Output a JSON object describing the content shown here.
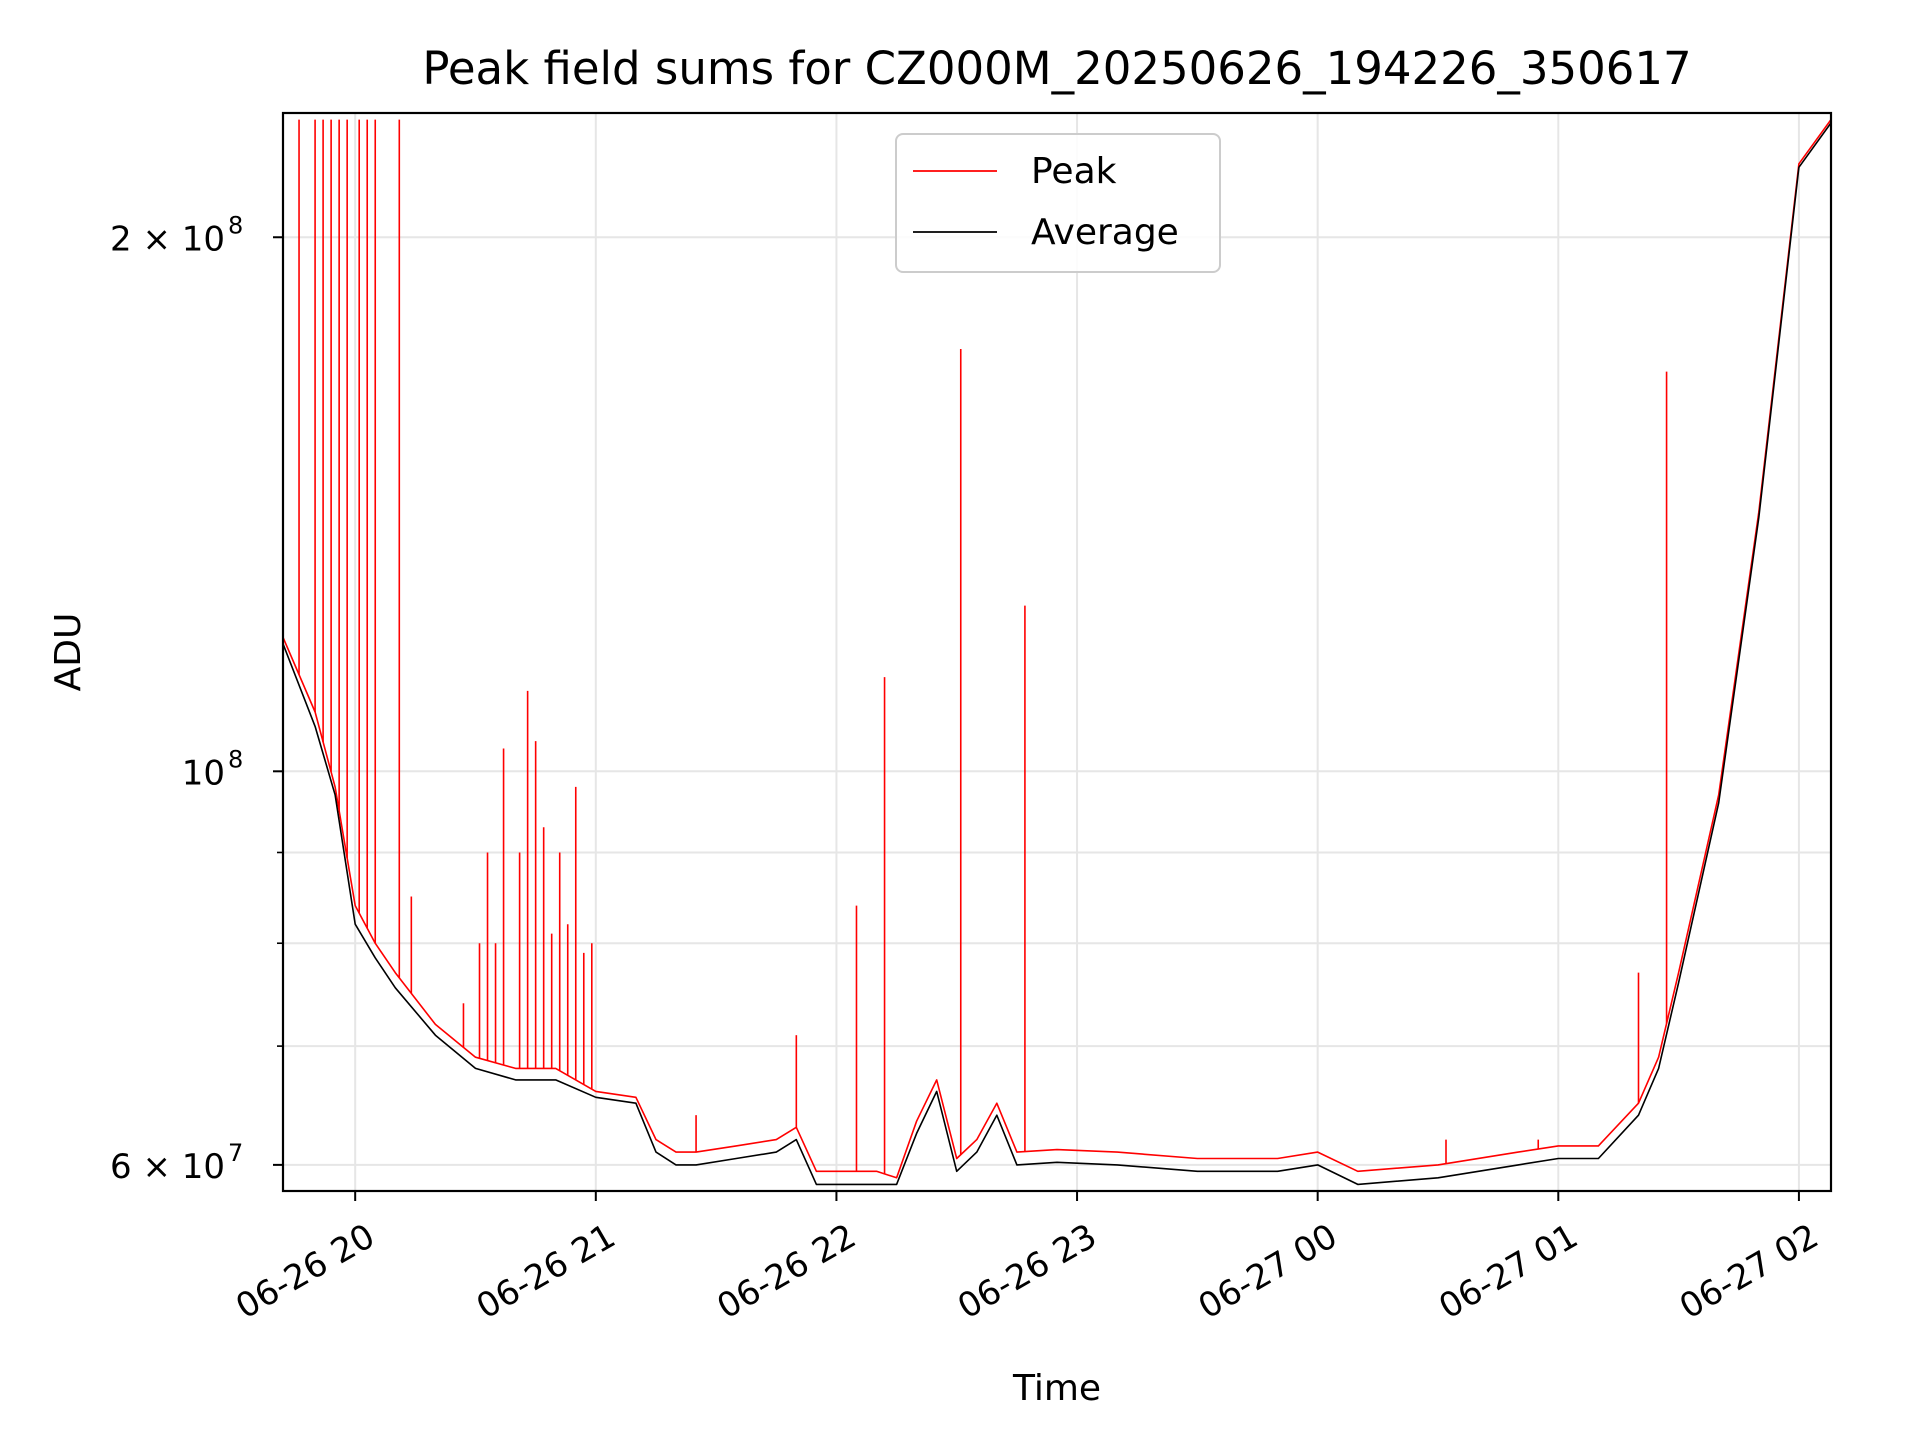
{
  "chart_data": {
    "type": "line",
    "title": "Peak field sums for CZ000M_20250626_194226_350617",
    "xlabel": "Time",
    "ylabel": "ADU",
    "yscale": "log",
    "grid": true,
    "legend_position": "top-center",
    "xlim": [
      "2025-06-26 19:42",
      "2025-06-27 02:08"
    ],
    "ylim": [
      58000000,
      235000000
    ],
    "x_ticks": [
      "06-26 20",
      "06-26 21",
      "06-26 22",
      "06-26 23",
      "06-27 00",
      "06-27 01",
      "06-27 02"
    ],
    "x_tick_times": [
      "2025-06-26 20:00",
      "2025-06-26 21:00",
      "2025-06-26 22:00",
      "2025-06-26 23:00",
      "2025-06-27 00:00",
      "2025-06-27 01:00",
      "2025-06-27 02:00"
    ],
    "y_ticks": [
      {
        "value": 60000000,
        "label_base": "6 × 10",
        "label_exp": "7"
      },
      {
        "value": 100000000,
        "label_base": "10",
        "label_exp": "8"
      },
      {
        "value": 200000000,
        "label_base": "2 × 10",
        "label_exp": "8"
      }
    ],
    "y_minor_ticks": [
      70000000,
      80000000,
      90000000
    ],
    "series": [
      {
        "name": "Peak",
        "color": "#ff0000",
        "x": [
          "2025-06-26 19:42",
          "2025-06-26 19:50",
          "2025-06-26 19:55",
          "2025-06-26 20:00",
          "2025-06-26 20:05",
          "2025-06-26 20:10",
          "2025-06-26 20:20",
          "2025-06-26 20:30",
          "2025-06-26 20:40",
          "2025-06-26 20:50",
          "2025-06-26 21:00",
          "2025-06-26 21:10",
          "2025-06-26 21:15",
          "2025-06-26 21:20",
          "2025-06-26 21:25",
          "2025-06-26 21:35",
          "2025-06-26 21:45",
          "2025-06-26 21:50",
          "2025-06-26 21:55",
          "2025-06-26 22:00",
          "2025-06-26 22:10",
          "2025-06-26 22:15",
          "2025-06-26 22:20",
          "2025-06-26 22:25",
          "2025-06-26 22:30",
          "2025-06-26 22:35",
          "2025-06-26 22:40",
          "2025-06-26 22:45",
          "2025-06-26 22:55",
          "2025-06-26 23:10",
          "2025-06-26 23:30",
          "2025-06-26 23:50",
          "2025-06-27 00:00",
          "2025-06-27 00:10",
          "2025-06-27 00:30",
          "2025-06-27 00:50",
          "2025-06-27 01:00",
          "2025-06-27 01:10",
          "2025-06-27 01:20",
          "2025-06-27 01:25",
          "2025-06-27 01:30",
          "2025-06-27 01:40",
          "2025-06-27 01:50",
          "2025-06-27 02:00",
          "2025-06-27 02:08"
        ],
        "y": [
          119000000,
          108000000,
          98000000,
          84000000,
          80000000,
          77000000,
          72000000,
          69000000,
          68000000,
          68000000,
          66000000,
          65500000,
          62000000,
          61000000,
          61000000,
          61500000,
          62000000,
          63000000,
          59500000,
          59500000,
          59500000,
          59000000,
          63500000,
          67000000,
          60500000,
          62000000,
          65000000,
          61000000,
          61200000,
          61000000,
          60500000,
          60500000,
          61000000,
          59500000,
          60000000,
          61000000,
          61500000,
          61500000,
          65000000,
          69000000,
          77000000,
          97000000,
          140000000,
          220000000,
          233000000
        ]
      },
      {
        "name": "Average",
        "color": "#000000",
        "x": [
          "2025-06-26 19:42",
          "2025-06-26 19:50",
          "2025-06-26 19:55",
          "2025-06-26 20:00",
          "2025-06-26 20:05",
          "2025-06-26 20:10",
          "2025-06-26 20:20",
          "2025-06-26 20:30",
          "2025-06-26 20:40",
          "2025-06-26 20:50",
          "2025-06-26 21:00",
          "2025-06-26 21:10",
          "2025-06-26 21:15",
          "2025-06-26 21:20",
          "2025-06-26 21:25",
          "2025-06-26 21:35",
          "2025-06-26 21:45",
          "2025-06-26 21:50",
          "2025-06-26 21:55",
          "2025-06-26 22:00",
          "2025-06-26 22:10",
          "2025-06-26 22:15",
          "2025-06-26 22:20",
          "2025-06-26 22:25",
          "2025-06-26 22:30",
          "2025-06-26 22:35",
          "2025-06-26 22:40",
          "2025-06-26 22:45",
          "2025-06-26 22:55",
          "2025-06-26 23:10",
          "2025-06-26 23:30",
          "2025-06-26 23:50",
          "2025-06-27 00:00",
          "2025-06-27 00:10",
          "2025-06-27 00:30",
          "2025-06-27 00:50",
          "2025-06-27 01:00",
          "2025-06-27 01:10",
          "2025-06-27 01:20",
          "2025-06-27 01:25",
          "2025-06-27 01:30",
          "2025-06-27 01:40",
          "2025-06-27 01:50",
          "2025-06-27 02:00",
          "2025-06-27 02:08"
        ],
        "y": [
          118000000,
          106000000,
          97000000,
          82000000,
          78500000,
          75500000,
          71000000,
          68000000,
          67000000,
          67000000,
          65500000,
          65000000,
          61000000,
          60000000,
          60000000,
          60500000,
          61000000,
          62000000,
          58500000,
          58500000,
          58500000,
          58500000,
          62500000,
          66000000,
          59500000,
          61000000,
          64000000,
          60000000,
          60200000,
          60000000,
          59500000,
          59500000,
          60000000,
          58500000,
          59000000,
          60000000,
          60500000,
          60500000,
          64000000,
          68000000,
          76000000,
          96000000,
          139000000,
          219000000,
          232000000
        ]
      }
    ],
    "spikes": {
      "series": "Peak",
      "x": [
        "2025-06-26 19:46",
        "2025-06-26 19:50",
        "2025-06-26 19:52",
        "2025-06-26 19:54",
        "2025-06-26 19:56",
        "2025-06-26 19:58",
        "2025-06-26 20:01",
        "2025-06-26 20:03",
        "2025-06-26 20:05",
        "2025-06-26 20:11",
        "2025-06-26 20:14",
        "2025-06-26 20:27",
        "2025-06-26 20:31",
        "2025-06-26 20:33",
        "2025-06-26 20:35",
        "2025-06-26 20:37",
        "2025-06-26 20:41",
        "2025-06-26 20:43",
        "2025-06-26 20:45",
        "2025-06-26 20:47",
        "2025-06-26 20:49",
        "2025-06-26 20:51",
        "2025-06-26 20:53",
        "2025-06-26 20:55",
        "2025-06-26 20:57",
        "2025-06-26 20:59",
        "2025-06-26 21:25",
        "2025-06-26 21:50",
        "2025-06-26 22:05",
        "2025-06-26 22:12",
        "2025-06-26 22:31",
        "2025-06-26 22:47",
        "2025-06-27 00:32",
        "2025-06-27 00:55",
        "2025-06-27 01:20",
        "2025-06-27 01:27"
      ],
      "y": [
        233000000,
        233000000,
        233000000,
        233000000,
        233000000,
        233000000,
        233000000,
        233000000,
        233000000,
        233000000,
        85000000,
        74000000,
        80000000,
        90000000,
        80000000,
        103000000,
        90000000,
        111000000,
        104000000,
        93000000,
        81000000,
        90000000,
        82000000,
        98000000,
        79000000,
        80000000,
        64000000,
        71000000,
        84000000,
        113000000,
        173000000,
        124000000,
        62000000,
        62000000,
        77000000,
        168000000
      ]
    }
  }
}
